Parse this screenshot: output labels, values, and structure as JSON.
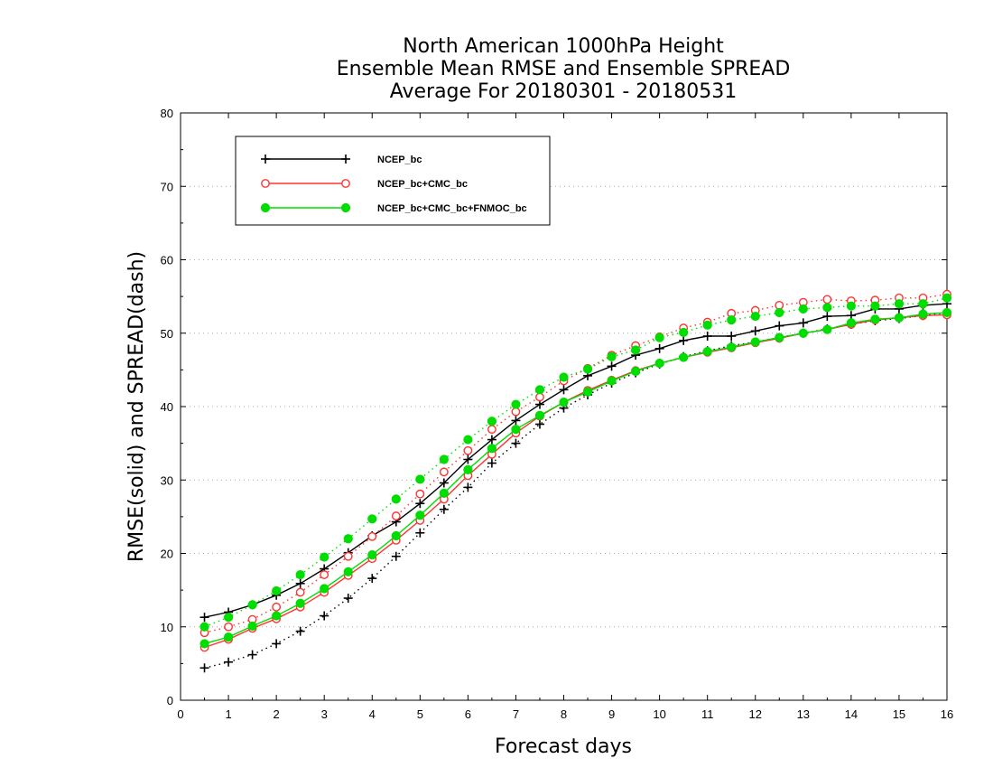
{
  "chart_data": {
    "type": "line",
    "title": [
      "North American 1000hPa Height",
      "Ensemble Mean RMSE and Ensemble SPREAD",
      "Average For 20180301 - 20180531"
    ],
    "xlabel": "Forecast days",
    "ylabel": "RMSE(solid) and SPREAD(dash)",
    "xlim": [
      0,
      16
    ],
    "ylim": [
      0,
      80
    ],
    "xticks": [
      0,
      1,
      2,
      3,
      4,
      5,
      6,
      7,
      8,
      9,
      10,
      11,
      12,
      13,
      14,
      15,
      16
    ],
    "yticks": [
      0,
      10,
      20,
      30,
      40,
      50,
      60,
      70,
      80
    ],
    "grid": "horizontal-dotted",
    "legend_position": "top-left",
    "x": [
      0.5,
      1,
      1.5,
      2,
      2.5,
      3,
      3.5,
      4,
      4.5,
      5,
      5.5,
      6,
      6.5,
      7,
      7.5,
      8,
      8.5,
      9,
      9.5,
      10,
      10.5,
      11,
      11.5,
      12,
      12.5,
      13,
      13.5,
      14,
      14.5,
      15,
      15.5,
      16
    ],
    "series": [
      {
        "name": "NCEP_bc",
        "color": "#000000",
        "marker": "plus",
        "rmse": [
          11.3,
          12.0,
          13.0,
          14.3,
          15.9,
          17.9,
          20.1,
          22.4,
          24.3,
          26.8,
          29.6,
          32.8,
          35.5,
          38.1,
          40.3,
          42.3,
          44.2,
          45.5,
          47.0,
          47.9,
          49.0,
          49.6,
          49.6,
          50.3,
          51.0,
          51.4,
          52.3,
          52.4,
          53.3,
          53.3,
          53.8,
          54.0
        ],
        "spread": [
          4.4,
          5.2,
          6.2,
          7.7,
          9.4,
          11.5,
          13.9,
          16.6,
          19.6,
          22.8,
          26.0,
          29.0,
          32.3,
          35.0,
          37.6,
          39.8,
          41.6,
          43.2,
          44.6,
          45.8,
          46.8,
          47.6,
          48.3,
          48.8,
          49.4,
          50.0,
          50.6,
          51.2,
          51.7,
          52.0,
          52.4,
          52.8
        ]
      },
      {
        "name": "NCEP_bc+CMC_bc",
        "color": "#ff3333",
        "marker": "open-circle",
        "rmse": [
          7.2,
          8.3,
          9.8,
          11.1,
          12.7,
          14.7,
          17.0,
          19.3,
          21.8,
          24.5,
          27.4,
          30.6,
          33.5,
          36.4,
          38.7,
          40.6,
          42.2,
          43.6,
          44.9,
          45.9,
          46.7,
          47.4,
          48.0,
          48.7,
          49.3,
          50.0,
          50.5,
          51.2,
          51.8,
          52.1,
          52.4,
          52.5
        ],
        "spread": [
          9.2,
          10.0,
          11.0,
          12.7,
          14.7,
          17.1,
          19.6,
          22.3,
          25.1,
          28.1,
          31.1,
          34.0,
          36.9,
          39.3,
          41.3,
          43.5,
          45.2,
          47.0,
          48.3,
          49.5,
          50.7,
          51.5,
          52.7,
          53.1,
          53.8,
          54.2,
          54.6,
          54.4,
          54.5,
          54.8,
          54.8,
          55.3
        ]
      },
      {
        "name": "NCEP_bc+CMC_bc+FNMOC_bc",
        "color": "#00dd00",
        "marker": "filled-circle",
        "rmse": [
          7.7,
          8.6,
          10.1,
          11.5,
          13.2,
          15.2,
          17.5,
          19.8,
          22.4,
          25.2,
          28.2,
          31.4,
          34.3,
          36.9,
          38.8,
          40.6,
          42.0,
          43.5,
          44.8,
          45.9,
          46.7,
          47.5,
          48.1,
          48.8,
          49.4,
          50.0,
          50.5,
          51.4,
          51.9,
          52.1,
          52.6,
          52.8
        ],
        "spread": [
          10.0,
          11.3,
          13.0,
          14.9,
          17.1,
          19.5,
          22.0,
          24.7,
          27.4,
          30.1,
          32.8,
          35.5,
          38.0,
          40.3,
          42.3,
          44.0,
          45.1,
          46.8,
          47.7,
          49.4,
          50.1,
          51.1,
          51.8,
          52.3,
          52.8,
          53.3,
          53.5,
          53.7,
          53.7,
          54.0,
          54.0,
          54.8
        ]
      }
    ]
  }
}
